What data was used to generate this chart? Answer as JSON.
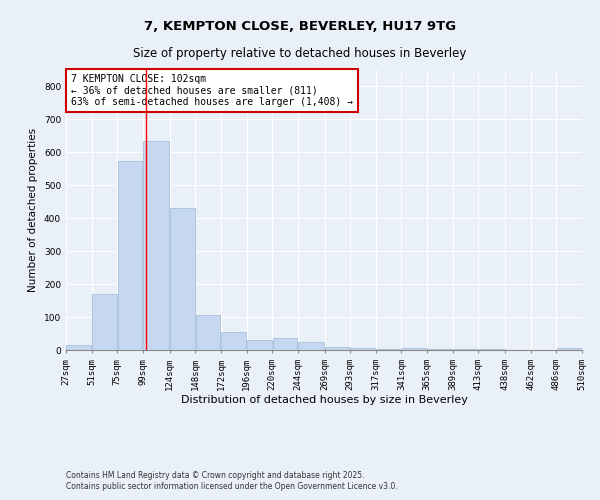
{
  "title1": "7, KEMPTON CLOSE, BEVERLEY, HU17 9TG",
  "title2": "Size of property relative to detached houses in Beverley",
  "xlabel": "Distribution of detached houses by size in Beverley",
  "ylabel": "Number of detached properties",
  "footnote1": "Contains HM Land Registry data © Crown copyright and database right 2025.",
  "footnote2": "Contains public sector information licensed under the Open Government Licence v3.0.",
  "annotation_line1": "7 KEMPTON CLOSE: 102sqm",
  "annotation_line2": "← 36% of detached houses are smaller (811)",
  "annotation_line3": "63% of semi-detached houses are larger (1,408) →",
  "bar_left_edges": [
    27,
    51,
    75,
    99,
    124,
    148,
    172,
    196,
    220,
    244,
    269,
    293,
    317,
    341,
    365,
    389,
    413,
    438,
    462,
    486
  ],
  "bar_widths": [
    24,
    24,
    24,
    25,
    24,
    24,
    24,
    24,
    24,
    25,
    24,
    24,
    24,
    24,
    24,
    24,
    25,
    24,
    24,
    24
  ],
  "bar_heights": [
    15,
    170,
    575,
    635,
    430,
    105,
    55,
    30,
    35,
    25,
    10,
    7,
    3,
    5,
    3,
    2,
    2,
    1,
    0,
    5
  ],
  "bar_color": "#c5d8f0",
  "bar_edge_color": "#a0b8d8",
  "red_line_x": 102,
  "ylim": [
    0,
    850
  ],
  "yticks": [
    0,
    100,
    200,
    300,
    400,
    500,
    600,
    700,
    800
  ],
  "tick_labels": [
    "27sqm",
    "51sqm",
    "75sqm",
    "99sqm",
    "124sqm",
    "148sqm",
    "172sqm",
    "196sqm",
    "220sqm",
    "244sqm",
    "269sqm",
    "293sqm",
    "317sqm",
    "341sqm",
    "365sqm",
    "389sqm",
    "413sqm",
    "438sqm",
    "462sqm",
    "486sqm",
    "510sqm"
  ],
  "background_color": "#eaf0f8",
  "grid_color": "#ffffff",
  "annotation_box_color": "#ffffff",
  "annotation_border_color": "#cc0000",
  "title1_fontsize": 9.5,
  "title2_fontsize": 8.5,
  "xlabel_fontsize": 8,
  "ylabel_fontsize": 7.5,
  "tick_fontsize": 6.5,
  "footnote_fontsize": 5.5,
  "annotation_fontsize": 7
}
